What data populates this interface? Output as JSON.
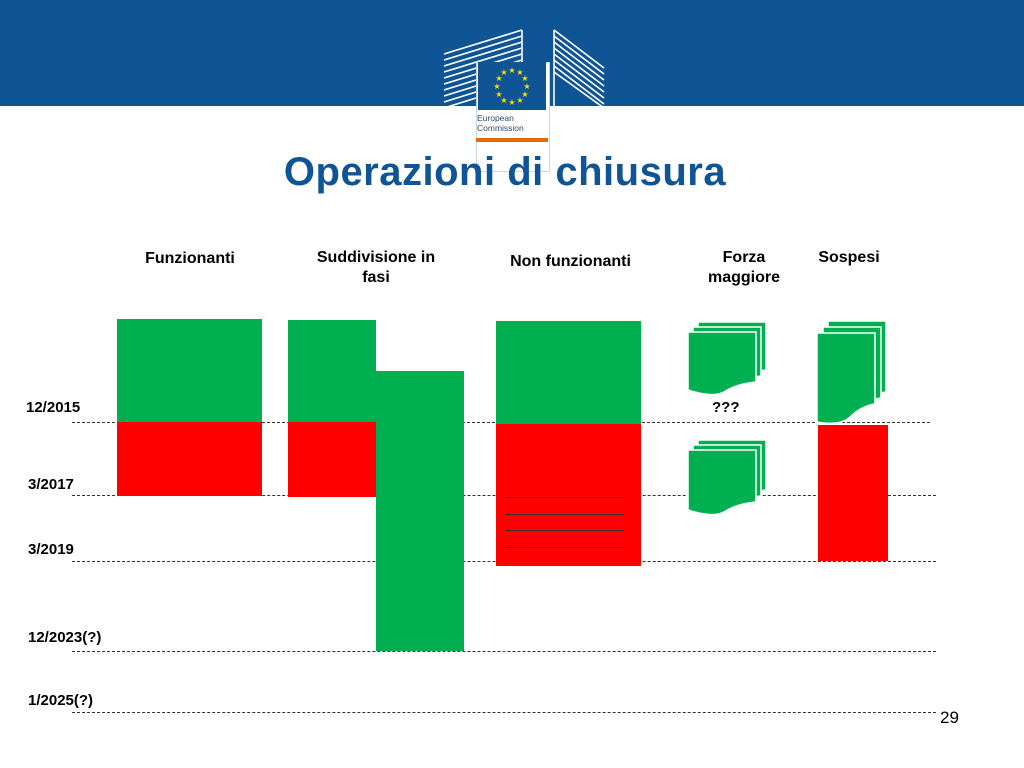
{
  "header": {
    "logo_line1": "European",
    "logo_line2": "Commission",
    "brand_color": "#0f5494",
    "accent_color": "#e36c09"
  },
  "slide": {
    "title": "Operazioni di chiusura",
    "page_number": "29"
  },
  "columns": [
    {
      "line1": "Funzionanti",
      "line2": ""
    },
    {
      "line1": "Suddivisione in",
      "line2": "fasi"
    },
    {
      "line1": "Non funzionanti",
      "line2": ""
    },
    {
      "line1": "Forza",
      "line2": "maggiore"
    },
    {
      "line1": "Sospesi",
      "line2": ""
    }
  ],
  "timeline": [
    "12/2015",
    "3/2017",
    "3/2019",
    "12/2023(?)",
    "1/2025(?)"
  ],
  "annotation": "???",
  "colors": {
    "green": "#00b050",
    "red": "#ff0000"
  }
}
